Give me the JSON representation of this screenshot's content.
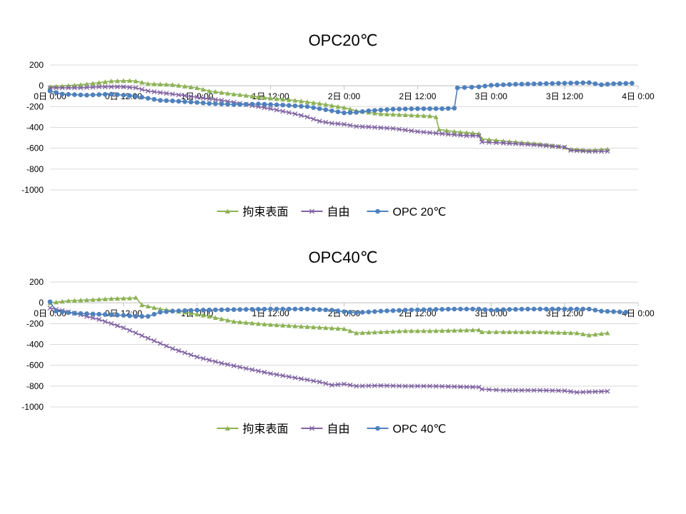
{
  "chart_data": [
    {
      "type": "line",
      "title": "OPC20℃",
      "xlabel": "",
      "ylabel": "",
      "ylim": [
        -1000,
        200
      ],
      "y_ticks": [
        "200",
        "0",
        "-200",
        "-400",
        "-600",
        "-800",
        "-1000"
      ],
      "x_ticks": [
        "0日 0:00",
        "0日 12:00",
        "1日 0:00",
        "1日 12:00",
        "2日 0:00",
        "2日 12:00",
        "3日 0:00",
        "3日 12:00",
        "4日 0:00"
      ],
      "x_range_hours": [
        0,
        96
      ],
      "grid": "horizontal",
      "legend_position": "bottom",
      "series": [
        {
          "name": "拘束表面",
          "color": "#8DB255",
          "marker": "triangle",
          "points": [
            [
              0,
              -10
            ],
            [
              5,
              10
            ],
            [
              8,
              30
            ],
            [
              10,
              45
            ],
            [
              13,
              50
            ],
            [
              14,
              45
            ],
            [
              16,
              20
            ],
            [
              20,
              10
            ],
            [
              24,
              -20
            ],
            [
              26,
              -50
            ],
            [
              30,
              -80
            ],
            [
              36,
              -120
            ],
            [
              40,
              -140
            ],
            [
              44,
              -170
            ],
            [
              48,
              -210
            ],
            [
              50,
              -240
            ],
            [
              54,
              -270
            ],
            [
              58,
              -280
            ],
            [
              62,
              -290
            ],
            [
              63,
              -300
            ],
            [
              63.5,
              -420
            ],
            [
              66,
              -440
            ],
            [
              68,
              -450
            ],
            [
              70,
              -460
            ],
            [
              70.5,
              -510
            ],
            [
              74,
              -530
            ],
            [
              80,
              -560
            ],
            [
              84,
              -590
            ],
            [
              85,
              -610
            ],
            [
              88,
              -620
            ],
            [
              91,
              -610
            ]
          ]
        },
        {
          "name": "自由",
          "color": "#7F62A1",
          "marker": "x",
          "points": [
            [
              0,
              -20
            ],
            [
              5,
              -20
            ],
            [
              8,
              -10
            ],
            [
              12,
              -10
            ],
            [
              14,
              -20
            ],
            [
              16,
              -50
            ],
            [
              20,
              -80
            ],
            [
              24,
              -110
            ],
            [
              28,
              -140
            ],
            [
              32,
              -180
            ],
            [
              36,
              -220
            ],
            [
              40,
              -270
            ],
            [
              42,
              -300
            ],
            [
              44,
              -340
            ],
            [
              46,
              -360
            ],
            [
              48,
              -370
            ],
            [
              50,
              -390
            ],
            [
              52,
              -395
            ],
            [
              56,
              -410
            ],
            [
              60,
              -440
            ],
            [
              64,
              -460
            ],
            [
              68,
              -480
            ],
            [
              70,
              -480
            ],
            [
              70.5,
              -540
            ],
            [
              74,
              -550
            ],
            [
              80,
              -570
            ],
            [
              84,
              -590
            ],
            [
              85,
              -620
            ],
            [
              88,
              -630
            ],
            [
              91,
              -630
            ]
          ]
        },
        {
          "name": "OPC 20℃",
          "color": "#4F81BD",
          "marker": "circle",
          "points": [
            [
              0,
              -50
            ],
            [
              2,
              -80
            ],
            [
              6,
              -90
            ],
            [
              10,
              -80
            ],
            [
              12,
              -90
            ],
            [
              14,
              -100
            ],
            [
              16,
              -120
            ],
            [
              18,
              -140
            ],
            [
              20,
              -145
            ],
            [
              24,
              -160
            ],
            [
              26,
              -170
            ],
            [
              30,
              -180
            ],
            [
              34,
              -175
            ],
            [
              38,
              -185
            ],
            [
              42,
              -200
            ],
            [
              44,
              -220
            ],
            [
              46,
              -240
            ],
            [
              48,
              -260
            ],
            [
              50,
              -255
            ],
            [
              52,
              -240
            ],
            [
              56,
              -225
            ],
            [
              60,
              -220
            ],
            [
              64,
              -220
            ],
            [
              66,
              -215
            ],
            [
              66.5,
              -20
            ],
            [
              70,
              -10
            ],
            [
              72,
              5
            ],
            [
              76,
              15
            ],
            [
              80,
              20
            ],
            [
              84,
              25
            ],
            [
              88,
              30
            ],
            [
              90,
              10
            ],
            [
              92,
              20
            ],
            [
              95,
              25
            ]
          ]
        }
      ]
    },
    {
      "type": "line",
      "title": "OPC40℃",
      "xlabel": "",
      "ylabel": "",
      "ylim": [
        -1000,
        200
      ],
      "y_ticks": [
        "200",
        "0",
        "-200",
        "-400",
        "-600",
        "-800",
        "-1000"
      ],
      "x_ticks": [
        "0日 0:00",
        "0日 12:00",
        "1日 0:00",
        "1日 12:00",
        "2日 0:00",
        "2日 12:00",
        "3日 0:00",
        "3日 12:00",
        "4日 0:00"
      ],
      "x_range_hours": [
        0,
        96
      ],
      "grid": "horizontal",
      "legend_position": "bottom",
      "series": [
        {
          "name": "拘束表面",
          "color": "#8DB255",
          "marker": "triangle",
          "points": [
            [
              0,
              0
            ],
            [
              3,
              20
            ],
            [
              7,
              30
            ],
            [
              10,
              40
            ],
            [
              13,
              45
            ],
            [
              14,
              50
            ],
            [
              15,
              -20
            ],
            [
              18,
              -60
            ],
            [
              22,
              -90
            ],
            [
              26,
              -130
            ],
            [
              30,
              -180
            ],
            [
              36,
              -210
            ],
            [
              42,
              -230
            ],
            [
              48,
              -250
            ],
            [
              50,
              -290
            ],
            [
              54,
              -280
            ],
            [
              58,
              -270
            ],
            [
              62,
              -270
            ],
            [
              66,
              -265
            ],
            [
              70,
              -260
            ],
            [
              70.5,
              -280
            ],
            [
              74,
              -280
            ],
            [
              80,
              -280
            ],
            [
              86,
              -290
            ],
            [
              88,
              -310
            ],
            [
              91,
              -290
            ]
          ]
        },
        {
          "name": "自由",
          "color": "#7F62A1",
          "marker": "x",
          "points": [
            [
              0,
              -50
            ],
            [
              4,
              -100
            ],
            [
              8,
              -160
            ],
            [
              12,
              -240
            ],
            [
              16,
              -340
            ],
            [
              20,
              -440
            ],
            [
              24,
              -520
            ],
            [
              28,
              -580
            ],
            [
              32,
              -630
            ],
            [
              36,
              -680
            ],
            [
              40,
              -720
            ],
            [
              44,
              -760
            ],
            [
              46,
              -790
            ],
            [
              48,
              -780
            ],
            [
              50,
              -800
            ],
            [
              54,
              -795
            ],
            [
              58,
              -800
            ],
            [
              62,
              -800
            ],
            [
              66,
              -805
            ],
            [
              70,
              -810
            ],
            [
              70.5,
              -830
            ],
            [
              74,
              -840
            ],
            [
              80,
              -840
            ],
            [
              84,
              -845
            ],
            [
              86,
              -860
            ],
            [
              88,
              -855
            ],
            [
              91,
              -850
            ]
          ]
        },
        {
          "name": "OPC 40℃",
          "color": "#4F81BD",
          "marker": "circle",
          "points": [
            [
              0,
              10
            ],
            [
              1,
              -80
            ],
            [
              4,
              -100
            ],
            [
              8,
              -110
            ],
            [
              12,
              -120
            ],
            [
              14,
              -130
            ],
            [
              16,
              -130
            ],
            [
              18,
              -90
            ],
            [
              20,
              -80
            ],
            [
              24,
              -70
            ],
            [
              30,
              -65
            ],
            [
              36,
              -60
            ],
            [
              42,
              -60
            ],
            [
              46,
              -70
            ],
            [
              48,
              -85
            ],
            [
              50,
              -95
            ],
            [
              54,
              -80
            ],
            [
              58,
              -70
            ],
            [
              62,
              -65
            ],
            [
              66,
              -60
            ],
            [
              70,
              -60
            ],
            [
              72,
              -70
            ],
            [
              74,
              -65
            ],
            [
              78,
              -60
            ],
            [
              84,
              -60
            ],
            [
              88,
              -60
            ],
            [
              90,
              -80
            ],
            [
              94,
              -90
            ]
          ]
        }
      ]
    }
  ]
}
